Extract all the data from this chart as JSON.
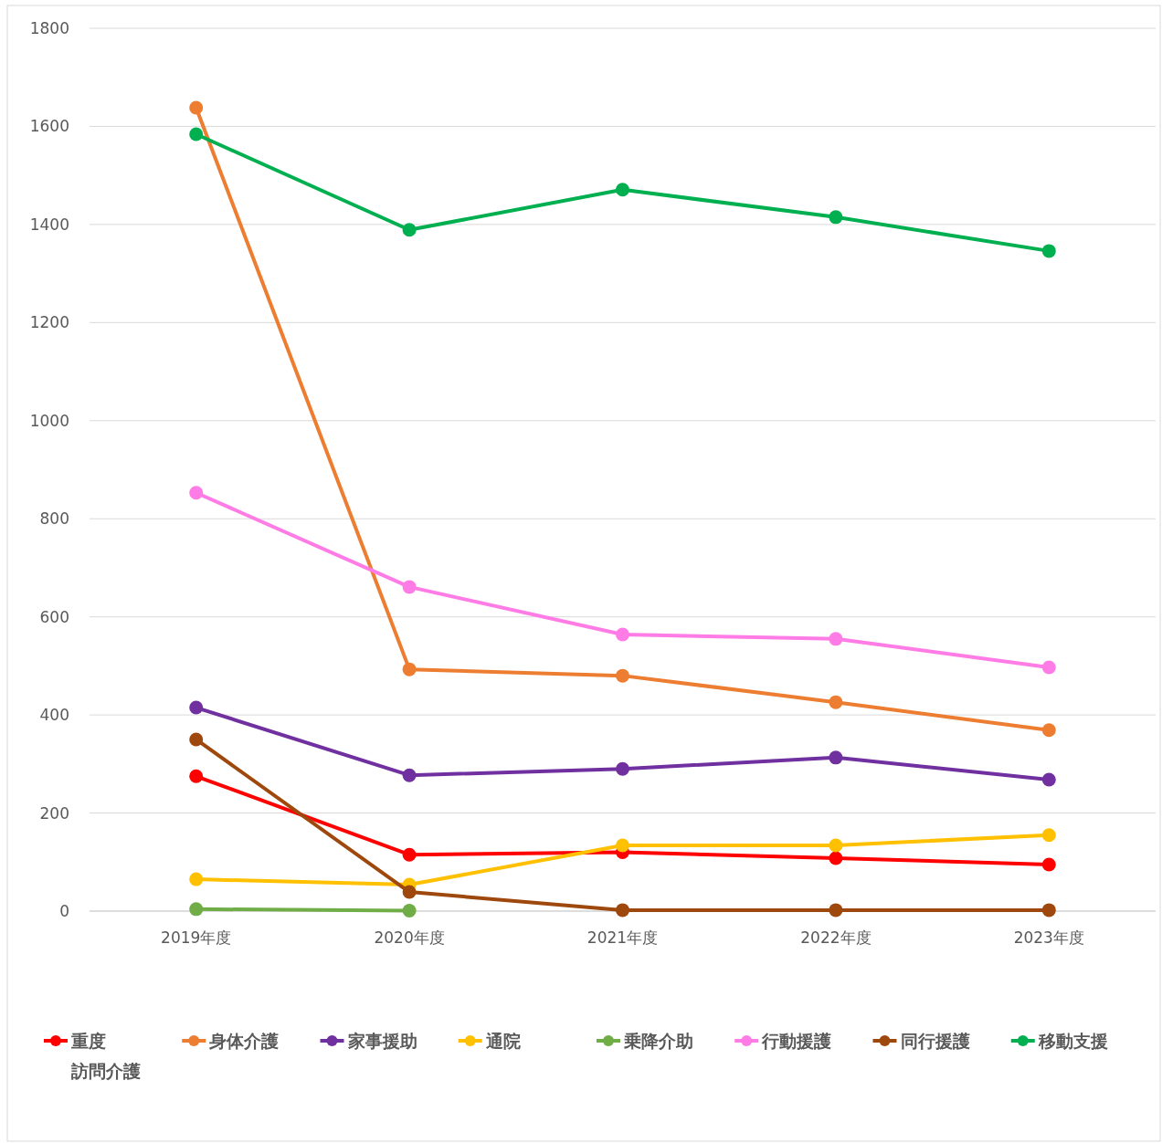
{
  "chart_data": {
    "type": "line",
    "categories": [
      "2019年度",
      "2020年度",
      "2021年度",
      "2022年度",
      "2023年度"
    ],
    "series": [
      {
        "name": "重度訪問介護",
        "color": "#ff0000",
        "values": [
          275,
          115,
          120,
          108,
          95
        ]
      },
      {
        "name": "身体介護",
        "color": "#ed7d31",
        "values": [
          1638,
          493,
          480,
          426,
          369
        ]
      },
      {
        "name": "家事援助",
        "color": "#7030a0",
        "values": [
          415,
          277,
          290,
          313,
          268
        ]
      },
      {
        "name": "通院",
        "color": "#ffc000",
        "values": [
          65,
          54,
          134,
          134,
          155
        ]
      },
      {
        "name": "乗降介助",
        "color": "#70ad47",
        "values": [
          4,
          1,
          null,
          null,
          null
        ]
      },
      {
        "name": "行動援護",
        "color": "#ff7ce6",
        "values": [
          853,
          661,
          564,
          555,
          497
        ]
      },
      {
        "name": "同行援護",
        "color": "#9e480e",
        "values": [
          350,
          39,
          2,
          2,
          2
        ]
      },
      {
        "name": "移動支援",
        "color": "#00b050",
        "values": [
          1584,
          1389,
          1471,
          1415,
          1346
        ]
      }
    ],
    "ylim": [
      0,
      1800
    ],
    "yticks": [
      0,
      200,
      400,
      600,
      800,
      1000,
      1200,
      1400,
      1600,
      1800
    ],
    "grid": "y",
    "legend": "bottom",
    "marker": "circle",
    "line_style": "solid"
  }
}
